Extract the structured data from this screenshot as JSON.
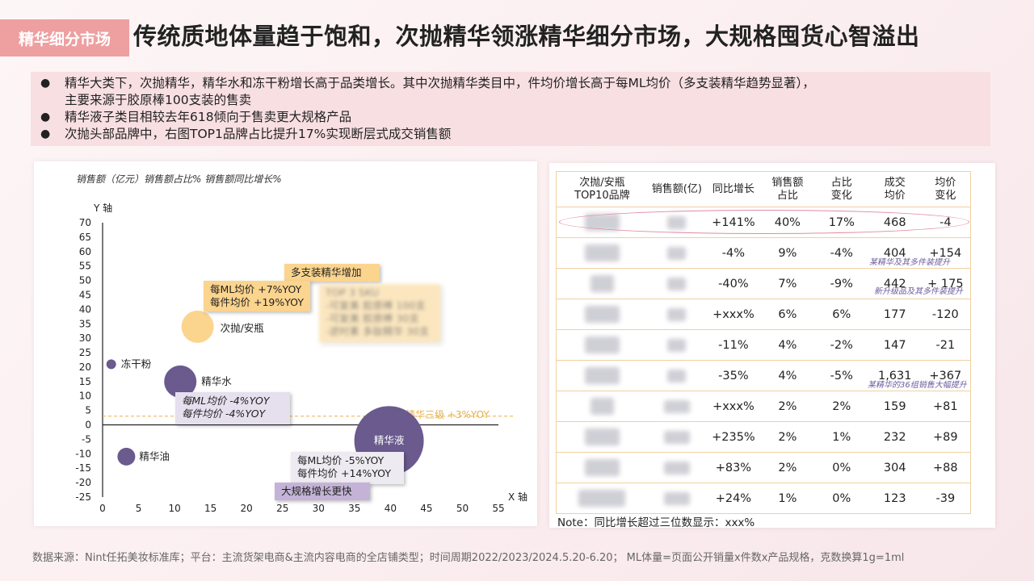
{
  "header": {
    "tag": "精华细分市场",
    "headline": "传统质地体量趋于饱和，次抛精华领涨精华细分市场，大规格囤货心智溢出"
  },
  "bullets": [
    {
      "text": "精华大类下，次抛精华，精华水和冻干粉增长高于品类增长。其中次抛精华类目中，件均价增长高于每ML均价（多支装精华趋势显著），"
    },
    {
      "text": "主要来源于胶原棒100支装的售卖"
    },
    {
      "text": "精华液子类目相较去年618倾向于售卖更大规格产品"
    },
    {
      "text": "次抛头部品牌中，右图TOP1品牌占比提升17%实现断层式成交销售额"
    }
  ],
  "chart_data": {
    "type": "scatter",
    "subtitle": "销售额（亿元）销售额占比% 销售额同比增长%",
    "ylabel": "Y 轴",
    "xlabel": "X 轴",
    "xlim": [
      0,
      55
    ],
    "ylim": [
      -25,
      70
    ],
    "xticks": [
      0,
      5,
      10,
      15,
      20,
      25,
      30,
      35,
      40,
      45,
      50,
      55
    ],
    "yticks": [
      70,
      65,
      60,
      55,
      50,
      45,
      40,
      35,
      30,
      25,
      20,
      15,
      10,
      5,
      0,
      -5,
      -10,
      -15,
      -20,
      -25
    ],
    "reference_line": {
      "y": 3,
      "label": "精华三级 +3%YOY",
      "color": "#e8b04a"
    },
    "bubbles": [
      {
        "name": "次抛/安瓶",
        "x": 13.2,
        "y": 34,
        "size": 40,
        "color": "#fbd48e"
      },
      {
        "name": "冻干粉",
        "x": 1.2,
        "y": 21,
        "size": 12,
        "color": "#6a5a8e"
      },
      {
        "name": "精华水",
        "x": 10.8,
        "y": 15,
        "size": 40,
        "color": "#6a5a8e"
      },
      {
        "name": "精华油",
        "x": 3.3,
        "y": -11,
        "size": 22,
        "color": "#6a5a8e"
      },
      {
        "name": "精华液",
        "x": 39.8,
        "y": -5.5,
        "size": 86,
        "color": "#6a5a8e"
      }
    ],
    "annotations": {
      "multi_pack": "多支装精华增加",
      "ampoule_ml": "每ML均价 +7%YOY",
      "ampoule_unit": "每件均价 +19%YOY",
      "top_note_1": "TOP 3 SKU",
      "top_note_2": "-可复美 胶原棒 100支",
      "top_note_3": "-可复美 胶原棒 30支",
      "top_note_4": "-逆时素 多肽精华 30支",
      "toner_ml": "每ML均价 -4%YOY",
      "toner_unit": "每件均价 -4%YOY",
      "serum_ml": "每ML均价 -5%YOY",
      "serum_unit": "每件均价 +14%YOY",
      "serum_tag": "大规格增长更快"
    }
  },
  "table": {
    "headers": [
      "次抛/安瓶\nTOP10品牌",
      "销售额(亿)",
      "同比增长",
      "销售额\n占比",
      "占比\n变化",
      "成交\n均价",
      "均价\n变化"
    ],
    "rows": [
      {
        "brand": "可复美",
        "sales": "5.0",
        "yoy": "+141%",
        "share": "40%",
        "share_chg": "17%",
        "price": "468",
        "price_chg": "-4"
      },
      {
        "brand": "润百颜",
        "sales": "1.2",
        "yoy": "-4%",
        "share": "9%",
        "share_chg": "-4%",
        "price": "404",
        "price_chg": "+154"
      },
      {
        "brand": "夸迪",
        "sales": "0.9",
        "yoy": "-40%",
        "share": "7%",
        "share_chg": "-9%",
        "price": "442",
        "price_chg": "+ 175"
      },
      {
        "brand": "敷尔佳",
        "sales": "0.8",
        "yoy": "+xxx%",
        "share": "6%",
        "share_chg": "6%",
        "price": "177",
        "price_chg": "-120"
      },
      {
        "brand": "逆时素",
        "sales": "0.5",
        "yoy": "-11%",
        "share": "4%",
        "share_chg": "-2%",
        "price": "147",
        "price_chg": "-21"
      },
      {
        "brand": "珀莱雅",
        "sales": "0.5",
        "yoy": "-35%",
        "share": "4%",
        "share_chg": "-5%",
        "price": "1,631",
        "price_chg": "+367"
      },
      {
        "brand": "玉泽",
        "sales": "0.30",
        "yoy": "+xxx%",
        "share": "2%",
        "share_chg": "2%",
        "price": "159",
        "price_chg": "+81"
      },
      {
        "brand": "薇诺娜",
        "sales": "0.28",
        "yoy": "+235%",
        "share": "2%",
        "share_chg": "1%",
        "price": "232",
        "price_chg": "+89"
      },
      {
        "brand": "可丽金",
        "sales": "0.22",
        "yoy": "+83%",
        "share": "2%",
        "share_chg": "0%",
        "price": "304",
        "price_chg": "+88"
      },
      {
        "brand": "瑷尔博士",
        "sales": "0.18",
        "yoy": "+24%",
        "share": "1%",
        "share_chg": "0%",
        "price": "123",
        "price_chg": "-39"
      }
    ],
    "row_notes": {
      "r2": "某精华及其多件装提升",
      "r3": "新升级品及其多件装提升",
      "r6": "某精华的36组销售大幅提升"
    },
    "note": "Note：同比增长超过三位数显示：xxx%"
  },
  "footer": "数据来源：Nint任拓美妆标准库；平台：主流货架电商&主流内容电商的全店铺类型；时间周期2022/2023/2024.5.20-6.20； ML体量=页面公开销量x件数x产品规格，克数换算1g=1ml"
}
